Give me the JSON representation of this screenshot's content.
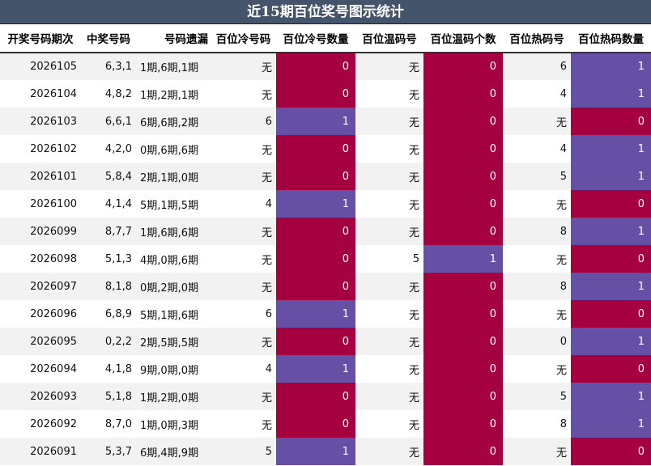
{
  "title": "近15期百位奖号图示统计",
  "headers": [
    "开奖号码期次",
    "中奖号码",
    "号码遗漏",
    "百位冷号码",
    "百位冷号数量",
    "百位温码号",
    "百位温码个数",
    "百位热码号",
    "百位热码数量"
  ],
  "colors": {
    "header_bg": "#44546a",
    "count_zero": "#a50040",
    "count_one": "#6650a6"
  },
  "rows": [
    {
      "period": "2026105",
      "number": "6,3,1",
      "miss": "1期,6期,1期",
      "cold": "无",
      "cold_n": "0",
      "warm": "无",
      "warm_n": "0",
      "hot": "6",
      "hot_n": "1"
    },
    {
      "period": "2026104",
      "number": "4,8,2",
      "miss": "1期,2期,1期",
      "cold": "无",
      "cold_n": "0",
      "warm": "无",
      "warm_n": "0",
      "hot": "4",
      "hot_n": "1"
    },
    {
      "period": "2026103",
      "number": "6,6,1",
      "miss": "6期,6期,2期",
      "cold": "6",
      "cold_n": "1",
      "warm": "无",
      "warm_n": "0",
      "hot": "无",
      "hot_n": "0"
    },
    {
      "period": "2026102",
      "number": "4,2,0",
      "miss": "0期,6期,6期",
      "cold": "无",
      "cold_n": "0",
      "warm": "无",
      "warm_n": "0",
      "hot": "4",
      "hot_n": "1"
    },
    {
      "period": "2026101",
      "number": "5,8,4",
      "miss": "2期,1期,0期",
      "cold": "无",
      "cold_n": "0",
      "warm": "无",
      "warm_n": "0",
      "hot": "5",
      "hot_n": "1"
    },
    {
      "period": "2026100",
      "number": "4,1,4",
      "miss": "5期,1期,5期",
      "cold": "4",
      "cold_n": "1",
      "warm": "无",
      "warm_n": "0",
      "hot": "无",
      "hot_n": "0"
    },
    {
      "period": "2026099",
      "number": "8,7,7",
      "miss": "1期,6期,6期",
      "cold": "无",
      "cold_n": "0",
      "warm": "无",
      "warm_n": "0",
      "hot": "8",
      "hot_n": "1"
    },
    {
      "period": "2026098",
      "number": "5,1,3",
      "miss": "4期,0期,6期",
      "cold": "无",
      "cold_n": "0",
      "warm": "5",
      "warm_n": "1",
      "hot": "无",
      "hot_n": "0"
    },
    {
      "period": "2026097",
      "number": "8,1,8",
      "miss": "0期,2期,0期",
      "cold": "无",
      "cold_n": "0",
      "warm": "无",
      "warm_n": "0",
      "hot": "8",
      "hot_n": "1"
    },
    {
      "period": "2026096",
      "number": "6,8,9",
      "miss": "5期,1期,6期",
      "cold": "6",
      "cold_n": "1",
      "warm": "无",
      "warm_n": "0",
      "hot": "无",
      "hot_n": "0"
    },
    {
      "period": "2026095",
      "number": "0,2,2",
      "miss": "2期,5期,5期",
      "cold": "无",
      "cold_n": "0",
      "warm": "无",
      "warm_n": "0",
      "hot": "0",
      "hot_n": "1"
    },
    {
      "period": "2026094",
      "number": "4,1,8",
      "miss": "9期,0期,0期",
      "cold": "4",
      "cold_n": "1",
      "warm": "无",
      "warm_n": "0",
      "hot": "无",
      "hot_n": "0"
    },
    {
      "period": "2026093",
      "number": "5,1,8",
      "miss": "1期,2期,0期",
      "cold": "无",
      "cold_n": "0",
      "warm": "无",
      "warm_n": "0",
      "hot": "5",
      "hot_n": "1"
    },
    {
      "period": "2026092",
      "number": "8,7,0",
      "miss": "1期,0期,3期",
      "cold": "无",
      "cold_n": "0",
      "warm": "无",
      "warm_n": "0",
      "hot": "8",
      "hot_n": "1"
    },
    {
      "period": "2026091",
      "number": "5,3,7",
      "miss": "6期,4期,9期",
      "cold": "5",
      "cold_n": "1",
      "warm": "无",
      "warm_n": "0",
      "hot": "无",
      "hot_n": "0"
    }
  ]
}
